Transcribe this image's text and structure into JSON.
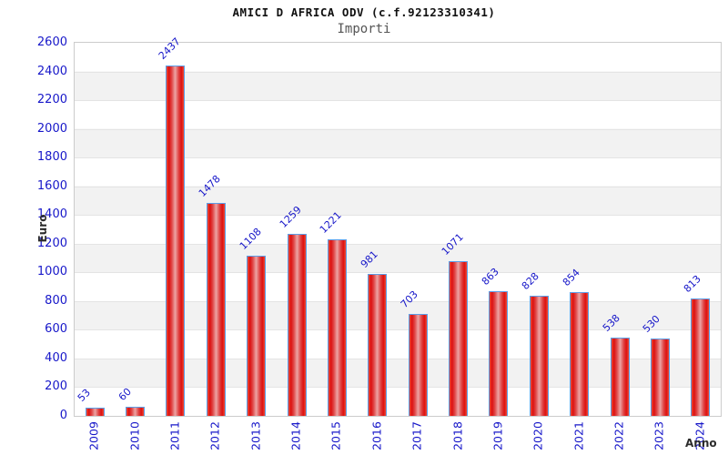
{
  "header": {
    "title": "AMICI D AFRICA ODV (c.f.92123310341)",
    "subtitle": "Importi"
  },
  "chart_data": {
    "type": "bar",
    "title": "AMICI D AFRICA ODV (c.f.92123310341)",
    "subtitle": "Importi",
    "xlabel": "Anno",
    "ylabel": "Euro",
    "categories": [
      "2009",
      "2010",
      "2011",
      "2012",
      "2013",
      "2014",
      "2015",
      "2016",
      "2017",
      "2018",
      "2019",
      "2020",
      "2021",
      "2022",
      "2023",
      "2024"
    ],
    "values": [
      53,
      60,
      2437,
      1478,
      1108,
      1259,
      1221,
      981,
      703,
      1071,
      863,
      828,
      854,
      538,
      530,
      813
    ],
    "ylim": [
      0,
      2600
    ],
    "ytick_step": 200,
    "legend": "none",
    "grid": "horizontal alternating bands",
    "colors": {
      "bar_fill_dark": "#dc1010",
      "bar_fill_light": "#eca4a4",
      "bar_border": "#5b9ee8",
      "tick_label": "#1717c9",
      "band": "#f2f2f2",
      "plot_border": "#cccccc"
    }
  }
}
